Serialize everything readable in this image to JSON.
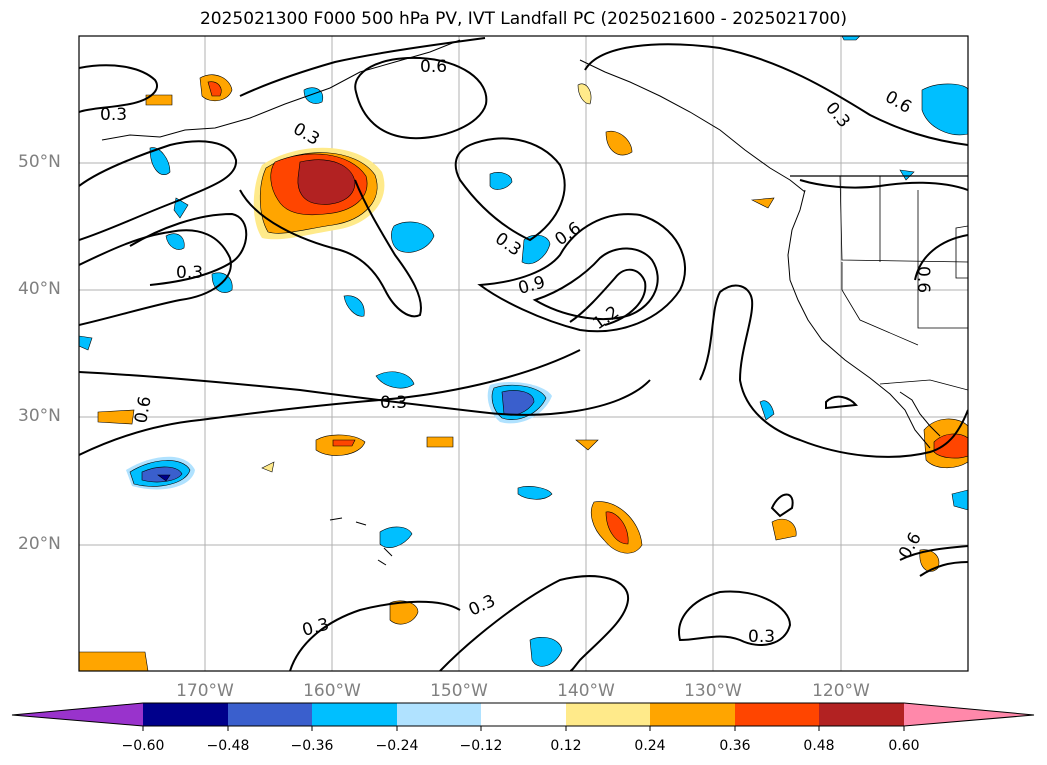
{
  "title": "2025021300 F000 500 hPa PV, IVT Landfall PC (2025021600 - 2025021700)",
  "map": {
    "lat_labels": [
      "50°N",
      "40°N",
      "30°N",
      "20°N"
    ],
    "lon_labels": [
      "170°W",
      "160°W",
      "150°W",
      "140°W",
      "130°W",
      "120°W"
    ],
    "contour_labels": [
      "0.6",
      "0.3",
      "0.3",
      "0.3",
      "0.3",
      "0.6",
      "0.9",
      "1.2",
      "0.6",
      "0.3",
      "0.6",
      "0.6",
      "0.3",
      "0.3",
      "0.3",
      "0.6",
      "0.3"
    ],
    "gridline_color": "#b0b0b0"
  },
  "colorbar": {
    "tick_labels": [
      "−0.60",
      "−0.48",
      "−0.36",
      "−0.24",
      "−0.12",
      "0.12",
      "0.24",
      "0.36",
      "0.48",
      "0.60"
    ],
    "colors": [
      "#9933cc",
      "#00008b",
      "#3a5fcd",
      "#00bfff",
      "#b0e2ff",
      "#ffffff",
      "#ffea8a",
      "#ffa500",
      "#ff4500",
      "#b22222",
      "#ff88aa"
    ]
  }
}
